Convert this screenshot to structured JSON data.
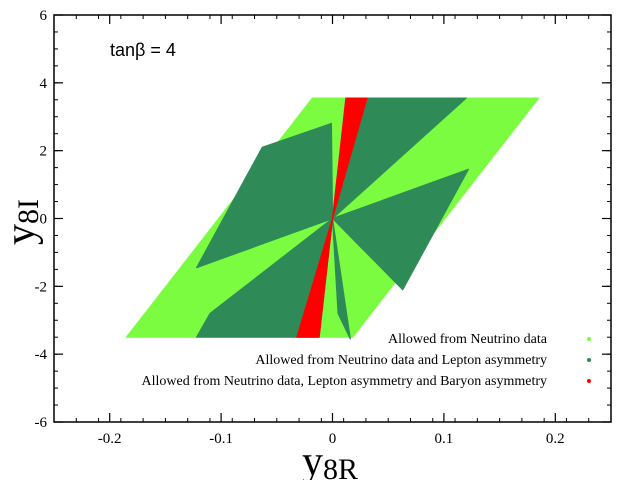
{
  "chart_data": {
    "type": "scatter",
    "title": "",
    "annotation": "tanβ = 4",
    "xlabel": {
      "main": "y",
      "sub": "8R"
    },
    "ylabel": {
      "main": "y",
      "sub": "8I"
    },
    "xlim": [
      -0.25,
      0.25
    ],
    "ylim": [
      -6,
      6
    ],
    "x_ticks": [
      -0.2,
      -0.1,
      0,
      0.1,
      0.2
    ],
    "x_tick_labels": [
      "-0.2",
      "-0.1",
      "0",
      "0.1",
      "0.2"
    ],
    "y_ticks": [
      -6,
      -4,
      -2,
      0,
      2,
      4,
      6
    ],
    "y_tick_labels": [
      "-6",
      "-4",
      "-2",
      "0",
      "2",
      "4",
      "6"
    ],
    "grid": false,
    "legend_position": "bottom-right",
    "series": [
      {
        "name": "Allowed from Neutrino data",
        "color": "#7cfc40",
        "regions": [
          [
            [
              -0.018,
              3.55
            ],
            [
              0.185,
              3.55
            ],
            [
              0.018,
              -3.5
            ],
            [
              -0.185,
              -3.5
            ]
          ]
        ]
      },
      {
        "name": "Allowed from Neutrino data and Lepton asymmetry",
        "color": "#2e8b57",
        "regions": [
          [
            [
              0,
              0
            ],
            [
              -0.001,
              2.8
            ],
            [
              -0.063,
              2.1
            ]
          ],
          [
            [
              0,
              0
            ],
            [
              -0.063,
              2.1
            ],
            [
              -0.122,
              -1.45
            ]
          ],
          [
            [
              0,
              0
            ],
            [
              -0.012,
              -3.5
            ],
            [
              -0.122,
              -3.5
            ],
            [
              -0.11,
              -2.8
            ]
          ],
          [
            [
              0,
              0
            ],
            [
              0.016,
              3.55
            ],
            [
              0.12,
              3.55
            ]
          ],
          [
            [
              0,
              0
            ],
            [
              0.122,
              1.45
            ],
            [
              0.063,
              -2.1
            ]
          ],
          [
            [
              0,
              0
            ],
            [
              0.016,
              -3.55
            ],
            [
              0.005,
              -2.8
            ]
          ]
        ]
      },
      {
        "name": "Allowed from Neutrino data, Lepton asymmetry and Baryon asymmetry",
        "color": "#ff0000",
        "regions": [
          [
            [
              0,
              0
            ],
            [
              0.012,
              3.55
            ],
            [
              0.031,
              3.55
            ]
          ],
          [
            [
              0,
              0
            ],
            [
              -0.032,
              -3.5
            ],
            [
              -0.012,
              -3.5
            ]
          ]
        ]
      }
    ]
  }
}
